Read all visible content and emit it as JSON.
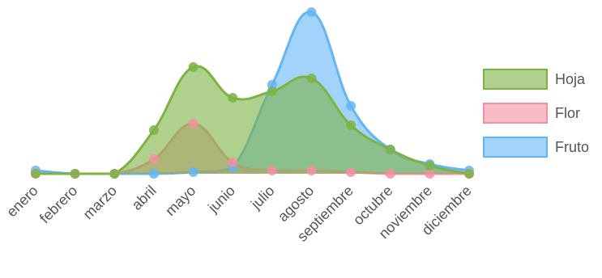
{
  "chart_data": {
    "type": "area",
    "categories": [
      "enero",
      "febrero",
      "marzo",
      "abril",
      "mayo",
      "junio",
      "julio",
      "agosto",
      "septiembre",
      "octubre",
      "noviembre",
      "diciembre"
    ],
    "ylim": [
      0,
      100
    ],
    "grid": false,
    "legend_position": "right",
    "series": [
      {
        "name": "Hoja",
        "values": [
          0,
          0,
          0,
          27,
          66,
          47,
          51,
          59,
          30,
          15,
          5,
          0
        ],
        "color": "#7cb342",
        "fill": "rgba(124,179,66,0.6)"
      },
      {
        "name": "Flor",
        "values": [
          0,
          0,
          0,
          9,
          31,
          7,
          2,
          2,
          1,
          0,
          0,
          0
        ],
        "color": "#f48fa2",
        "fill": "rgba(244,143,162,0.6)"
      },
      {
        "name": "Fruto",
        "values": [
          2,
          0,
          0,
          0,
          1,
          4,
          55,
          100,
          42,
          15,
          6,
          2
        ],
        "color": "#64b5f6",
        "fill": "rgba(100,181,246,0.6)"
      }
    ]
  }
}
